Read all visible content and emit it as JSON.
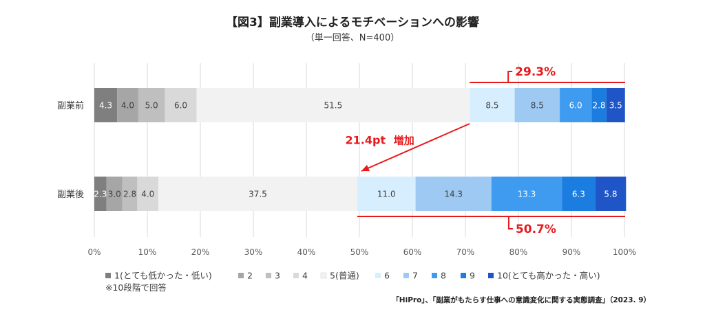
{
  "chart_data": {
    "type": "bar",
    "orientation": "horizontal",
    "stacked": "percent",
    "title": "【図3】副業導入によるモチベーションへの影響",
    "subtitle": "（単一回答、N=400）",
    "categories": [
      "副業前",
      "副業後"
    ],
    "series": [
      {
        "name": "1(とても低かった・低い)",
        "color": "#7f7f7f",
        "values": [
          4.3,
          2.3
        ]
      },
      {
        "name": "2",
        "color": "#a6a6a6",
        "values": [
          4.0,
          3.0
        ]
      },
      {
        "name": "3",
        "color": "#bfbfbf",
        "values": [
          5.0,
          2.8
        ]
      },
      {
        "name": "4",
        "color": "#d9d9d9",
        "values": [
          6.0,
          4.0
        ]
      },
      {
        "name": "5(普通)",
        "color": "#f2f2f2",
        "values": [
          51.5,
          37.5
        ]
      },
      {
        "name": "6",
        "color": "#d6eefd",
        "values": [
          8.5,
          11.0
        ]
      },
      {
        "name": "7",
        "color": "#9dc9f2",
        "values": [
          8.5,
          14.3
        ]
      },
      {
        "name": "8",
        "color": "#3f9bf0",
        "values": [
          6.0,
          13.3
        ]
      },
      {
        "name": "9",
        "color": "#1c7de0",
        "values": [
          2.8,
          6.3
        ]
      },
      {
        "name": "10(とても高かった・高い)",
        "color": "#1f55c6",
        "values": [
          3.5,
          5.8
        ]
      }
    ],
    "xlim": [
      0,
      100
    ],
    "xticks": [
      "0%",
      "10%",
      "20%",
      "30%",
      "40%",
      "50%",
      "60%",
      "70%",
      "80%",
      "90%",
      "100%"
    ],
    "grid": true,
    "legend": "bottom",
    "annotations": {
      "before_total": "29.3%",
      "after_total": "50.7%",
      "increase_value": "21.4pt",
      "increase_word": "増加"
    },
    "accent_color": "#e8191c"
  },
  "note": "※10段階で回答",
  "source": "「HiPro」、「副業がもたらす仕事への意識変化に関する実態調査」（2023. 9）"
}
